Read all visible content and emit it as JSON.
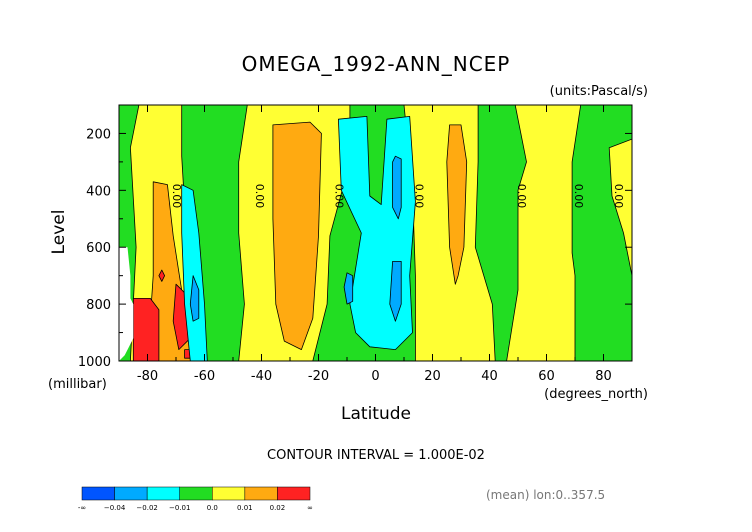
{
  "chart_data": {
    "type": "heatmap",
    "title": "OMEGA_1992-ANN_NCEP",
    "units": "(units:Pascal/s)",
    "xlabel": "Latitude",
    "xunit": "(degrees_north)",
    "ylabel": "Level",
    "yunit": "(millibar)",
    "xlim": [
      -90,
      90
    ],
    "ylim": [
      1000,
      100
    ],
    "x_ticks": [
      "-80",
      "-60",
      "-40",
      "-20",
      "0",
      "20",
      "40",
      "60",
      "80"
    ],
    "y_ticks": [
      "200",
      "400",
      "600",
      "800",
      "1000"
    ],
    "contour_interval_label": "CONTOUR INTERVAL = 1.000E-02",
    "contour_line_label": "0.00",
    "mean_label": "(mean) lon:0..357.5",
    "colorbar": {
      "labels": [
        "-∞",
        "−0.04",
        "−0.02",
        "−0.01",
        "0.0",
        "0.01",
        "0.02",
        "∞"
      ],
      "colors": [
        "#0055ff",
        "#00aaff",
        "#00ffff",
        "#22dd22",
        "#ffff33",
        "#ffaa11",
        "#ff2222"
      ]
    },
    "zero_contour_labels_lat": [
      -71,
      -42,
      -14,
      14,
      50,
      70,
      84
    ],
    "regions": [
      {
        "cls": 3,
        "pts": [
          [
            -90,
            100
          ],
          [
            90,
            100
          ],
          [
            90,
            1000
          ],
          [
            -90,
            1000
          ]
        ]
      },
      {
        "cls": 4,
        "pts": [
          [
            -83,
            100
          ],
          [
            -68,
            100
          ],
          [
            -68,
            280
          ],
          [
            -66,
            620
          ],
          [
            -68,
            1000
          ],
          [
            -86,
            1000
          ],
          [
            -84,
            600
          ],
          [
            -86,
            250
          ]
        ]
      },
      {
        "cls": 4,
        "pts": [
          [
            -45,
            100
          ],
          [
            -9,
            100
          ],
          [
            -9,
            300
          ],
          [
            -16,
            560
          ],
          [
            -17,
            800
          ],
          [
            -22,
            1000
          ],
          [
            -48,
            1000
          ],
          [
            -46,
            800
          ],
          [
            -48,
            550
          ],
          [
            -48,
            300
          ]
        ]
      },
      {
        "cls": 4,
        "pts": [
          [
            10,
            100
          ],
          [
            36,
            100
          ],
          [
            36,
            300
          ],
          [
            35,
            600
          ],
          [
            41,
            800
          ],
          [
            42,
            1000
          ],
          [
            14,
            1000
          ],
          [
            14,
            700
          ],
          [
            13,
            400
          ]
        ]
      },
      {
        "cls": 4,
        "pts": [
          [
            49,
            100
          ],
          [
            72,
            100
          ],
          [
            69,
            300
          ],
          [
            69,
            620
          ],
          [
            70,
            700
          ],
          [
            70,
            1000
          ],
          [
            46,
            1000
          ],
          [
            50,
            750
          ],
          [
            50,
            400
          ],
          [
            53,
            300
          ]
        ]
      },
      {
        "cls": 4,
        "pts": [
          [
            82,
            250
          ],
          [
            90,
            220
          ],
          [
            90,
            700
          ],
          [
            87,
            550
          ],
          [
            83,
            420
          ]
        ]
      },
      {
        "cls": 5,
        "pts": [
          [
            -78,
            370
          ],
          [
            -73,
            380
          ],
          [
            -71,
            560
          ],
          [
            -66,
            880
          ],
          [
            -62,
            1000
          ],
          [
            -80,
            1000
          ],
          [
            -78,
            700
          ]
        ]
      },
      {
        "cls": 5,
        "pts": [
          [
            -36,
            170
          ],
          [
            -23,
            160
          ],
          [
            -19,
            200
          ],
          [
            -20,
            560
          ],
          [
            -22,
            850
          ],
          [
            -26,
            960
          ],
          [
            -32,
            930
          ],
          [
            -35,
            800
          ],
          [
            -36,
            500
          ]
        ]
      },
      {
        "cls": 5,
        "pts": [
          [
            26,
            170
          ],
          [
            30,
            170
          ],
          [
            32,
            300
          ],
          [
            31,
            600
          ],
          [
            29,
            700
          ],
          [
            28,
            730
          ],
          [
            26,
            600
          ],
          [
            25,
            300
          ]
        ]
      },
      {
        "cls": 6,
        "pts": [
          [
            -85,
            780
          ],
          [
            -79,
            780
          ],
          [
            -76,
            820
          ],
          [
            -76,
            1000
          ],
          [
            -85,
            1000
          ]
        ]
      },
      {
        "cls": 6,
        "pts": [
          [
            -70,
            730
          ],
          [
            -67,
            760
          ],
          [
            -65,
            920
          ],
          [
            -69,
            960
          ],
          [
            -71,
            860
          ]
        ]
      },
      {
        "cls": 6,
        "pts": [
          [
            -75,
            680
          ],
          [
            -74,
            700
          ],
          [
            -75,
            720
          ],
          [
            -76,
            700
          ]
        ]
      },
      {
        "cls": 6,
        "pts": [
          [
            -67,
            960
          ],
          [
            -64,
            960
          ],
          [
            -65,
            990
          ],
          [
            -67,
            990
          ]
        ]
      },
      {
        "cls": 2,
        "pts": [
          [
            -68,
            380
          ],
          [
            -64,
            400
          ],
          [
            -62,
            550
          ],
          [
            -60,
            800
          ],
          [
            -59,
            1000
          ],
          [
            -65,
            1000
          ],
          [
            -67,
            800
          ],
          [
            -68,
            550
          ]
        ]
      },
      {
        "cls": 2,
        "pts": [
          [
            -13,
            150
          ],
          [
            -3,
            140
          ],
          [
            -2,
            420
          ],
          [
            2,
            450
          ],
          [
            4,
            150
          ],
          [
            12,
            140
          ],
          [
            14,
            440
          ],
          [
            12,
            700
          ],
          [
            13,
            900
          ],
          [
            7,
            960
          ],
          [
            -2,
            950
          ],
          [
            -7,
            900
          ],
          [
            -9,
            800
          ],
          [
            -5,
            550
          ],
          [
            -12,
            400
          ]
        ]
      },
      {
        "cls": 1,
        "pts": [
          [
            -64,
            700
          ],
          [
            -62,
            750
          ],
          [
            -62,
            850
          ],
          [
            -64,
            860
          ],
          [
            -65,
            800
          ]
        ]
      },
      {
        "cls": 1,
        "pts": [
          [
            7,
            280
          ],
          [
            9,
            290
          ],
          [
            9,
            460
          ],
          [
            8,
            500
          ],
          [
            6,
            460
          ],
          [
            6,
            300
          ]
        ]
      },
      {
        "cls": 1,
        "pts": [
          [
            6,
            650
          ],
          [
            9,
            650
          ],
          [
            9,
            800
          ],
          [
            7,
            860
          ],
          [
            5,
            800
          ]
        ]
      },
      {
        "cls": 1,
        "pts": [
          [
            -10,
            690
          ],
          [
            -8,
            700
          ],
          [
            -8,
            790
          ],
          [
            -10,
            800
          ],
          [
            -11,
            740
          ]
        ]
      },
      {
        "cls": -1,
        "pts": [
          [
            -90,
            600
          ],
          [
            -87,
            600
          ],
          [
            -86,
            700
          ],
          [
            -86,
            780
          ],
          [
            -85,
            800
          ],
          [
            -85,
            920
          ],
          [
            -88,
            980
          ],
          [
            -90,
            1000
          ]
        ]
      }
    ]
  }
}
